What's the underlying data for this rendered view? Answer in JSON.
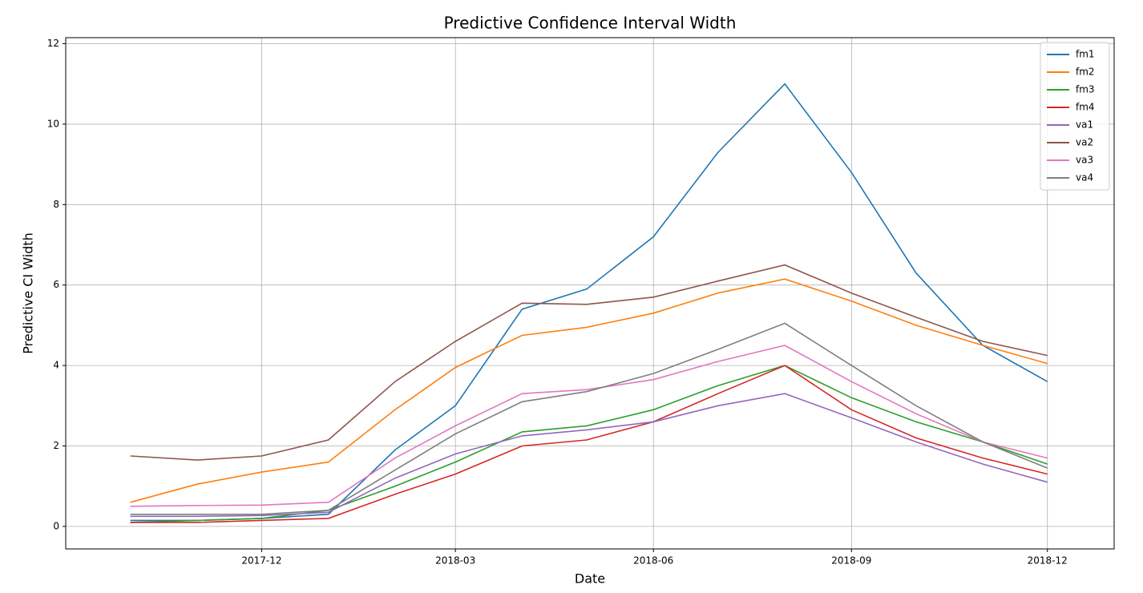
{
  "chart_data": {
    "type": "line",
    "title": "Predictive Confidence Interval Width",
    "xlabel": "Date",
    "ylabel": "Predictive CI Width",
    "x": [
      "2017-10",
      "2017-11",
      "2017-12",
      "2018-01",
      "2018-02",
      "2018-03",
      "2018-04",
      "2018-05",
      "2018-06",
      "2018-07",
      "2018-08",
      "2018-09",
      "2018-10",
      "2018-11",
      "2018-12"
    ],
    "xlim": [
      "2017-09",
      "2019-01"
    ],
    "xticks": [
      "2017-12",
      "2018-03",
      "2018-06",
      "2018-09",
      "2018-12"
    ],
    "ylim": [
      -0.56,
      12.15
    ],
    "yticks": [
      0,
      2,
      4,
      6,
      8,
      10,
      12
    ],
    "grid": true,
    "legend": "upper right",
    "series": [
      {
        "name": "fm1",
        "color": "#1f77b4",
        "values": [
          0.15,
          0.15,
          0.2,
          0.3,
          1.9,
          3.0,
          5.4,
          5.9,
          7.2,
          9.3,
          11.0,
          8.8,
          6.3,
          4.5,
          3.6
        ]
      },
      {
        "name": "fm2",
        "color": "#ff7f0e",
        "values": [
          0.6,
          1.05,
          1.35,
          1.6,
          2.9,
          3.95,
          4.75,
          4.95,
          5.3,
          5.8,
          6.15,
          5.6,
          5.0,
          4.5,
          4.05
        ]
      },
      {
        "name": "fm3",
        "color": "#2ca02c",
        "values": [
          0.1,
          0.15,
          0.2,
          0.4,
          1.0,
          1.6,
          2.35,
          2.5,
          2.9,
          3.5,
          4.0,
          3.2,
          2.6,
          2.1,
          1.55
        ]
      },
      {
        "name": "fm4",
        "color": "#d62728",
        "values": [
          0.1,
          0.1,
          0.15,
          0.2,
          0.8,
          1.3,
          2.0,
          2.15,
          2.6,
          3.3,
          4.0,
          2.9,
          2.2,
          1.7,
          1.3
        ]
      },
      {
        "name": "va1",
        "color": "#9467bd",
        "values": [
          0.25,
          0.25,
          0.27,
          0.35,
          1.2,
          1.8,
          2.25,
          2.4,
          2.6,
          3.0,
          3.3,
          2.7,
          2.1,
          1.55,
          1.1
        ]
      },
      {
        "name": "va2",
        "color": "#8c564b",
        "values": [
          1.75,
          1.65,
          1.75,
          2.15,
          3.6,
          4.6,
          5.55,
          5.52,
          5.7,
          6.1,
          6.5,
          5.8,
          5.2,
          4.6,
          4.25
        ]
      },
      {
        "name": "va3",
        "color": "#e377c2",
        "values": [
          0.5,
          0.52,
          0.53,
          0.6,
          1.7,
          2.5,
          3.3,
          3.4,
          3.65,
          4.1,
          4.5,
          3.6,
          2.8,
          2.1,
          1.7
        ]
      },
      {
        "name": "va4",
        "color": "#7f7f7f",
        "values": [
          0.3,
          0.3,
          0.3,
          0.4,
          1.4,
          2.3,
          3.1,
          3.35,
          3.8,
          4.4,
          5.05,
          4.0,
          3.0,
          2.1,
          1.45
        ]
      }
    ]
  }
}
